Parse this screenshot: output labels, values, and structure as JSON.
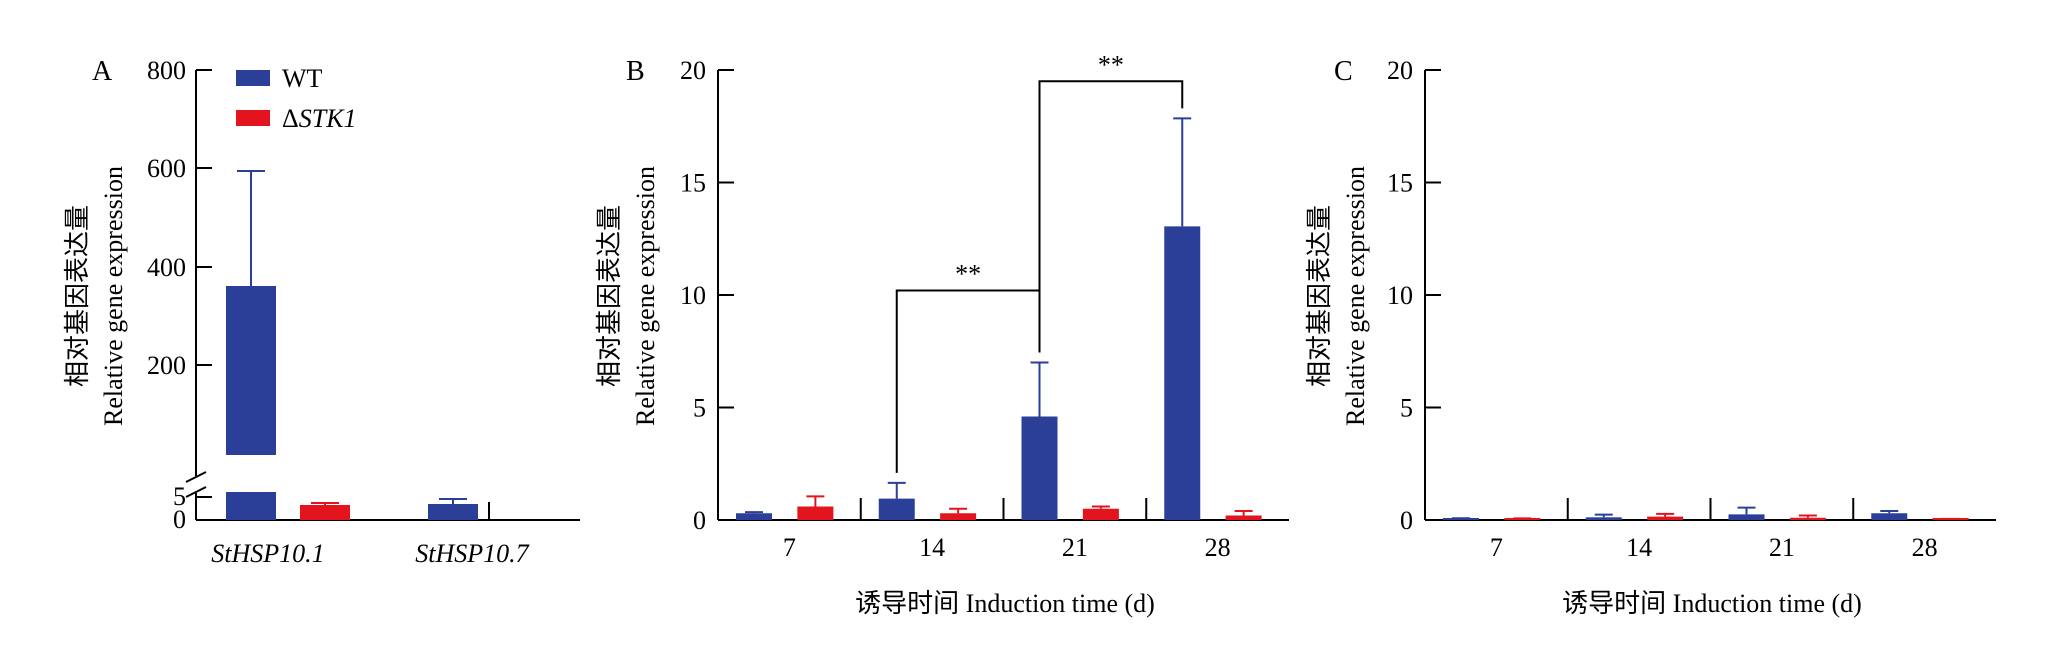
{
  "colors": {
    "wt": "#2B3F98",
    "stk1": "#E3141E",
    "axis": "#000000"
  },
  "legend": {
    "wt": "WT",
    "stk1_prefix": "Δ",
    "stk1_name": "STK1"
  },
  "ylabel_cn": "相对基因表达量",
  "ylabel_en": "Relative gene expression",
  "xlabel": "诱导时间 Induction time (d)",
  "chart_data": [
    {
      "panel": "A",
      "type": "bar",
      "categories": [
        "StHSP10.1",
        "StHSP10.7"
      ],
      "series": [
        {
          "name": "WT",
          "values": [
            360,
            3.2
          ],
          "errors": [
            235,
            1.2
          ]
        },
        {
          "name": "ΔSTK1",
          "values": [
            3.0,
            null
          ],
          "errors": [
            0.4,
            null
          ]
        }
      ],
      "ylabel": "相对基因表达量 Relative gene expression",
      "ylim": [
        0,
        800
      ],
      "axis_break": [
        5,
        10
      ],
      "yticks_lower": [
        "0",
        "5"
      ],
      "yticks_upper": [
        "200",
        "400",
        "600",
        "800"
      ]
    },
    {
      "panel": "B",
      "type": "bar",
      "categories": [
        "7",
        "14",
        "21",
        "28"
      ],
      "series": [
        {
          "name": "WT",
          "values": [
            0.3,
            0.95,
            4.6,
            13.05
          ],
          "errors": [
            0.05,
            0.7,
            2.4,
            4.8
          ]
        },
        {
          "name": "ΔSTK1",
          "values": [
            0.6,
            0.3,
            0.5,
            0.2
          ],
          "errors": [
            0.45,
            0.2,
            0.1,
            0.2
          ]
        }
      ],
      "xlabel": "诱导时间 Induction time (d)",
      "ylabel": "相对基因表达量 Relative gene expression",
      "ylim": [
        0,
        20
      ],
      "yticks": [
        "0",
        "5",
        "10",
        "15",
        "20"
      ],
      "annotations": [
        {
          "from": "14",
          "to": "21",
          "text": "**",
          "y": 10.2
        },
        {
          "from": "21",
          "to": "28",
          "text": "**",
          "y": 19.5
        }
      ]
    },
    {
      "panel": "C",
      "type": "bar",
      "categories": [
        "7",
        "14",
        "21",
        "28"
      ],
      "series": [
        {
          "name": "WT",
          "values": [
            0.05,
            0.12,
            0.25,
            0.3
          ],
          "errors": [
            0.03,
            0.12,
            0.3,
            0.1
          ]
        },
        {
          "name": "ΔSTK1",
          "values": [
            0.04,
            0.15,
            0.1,
            0.03
          ],
          "errors": [
            0.03,
            0.12,
            0.1,
            0.02
          ]
        }
      ],
      "xlabel": "诱导时间 Induction time (d)",
      "ylabel": "相对基因表达量 Relative gene expression",
      "ylim": [
        0,
        20
      ],
      "yticks": [
        "0",
        "5",
        "10",
        "15",
        "20"
      ]
    }
  ]
}
